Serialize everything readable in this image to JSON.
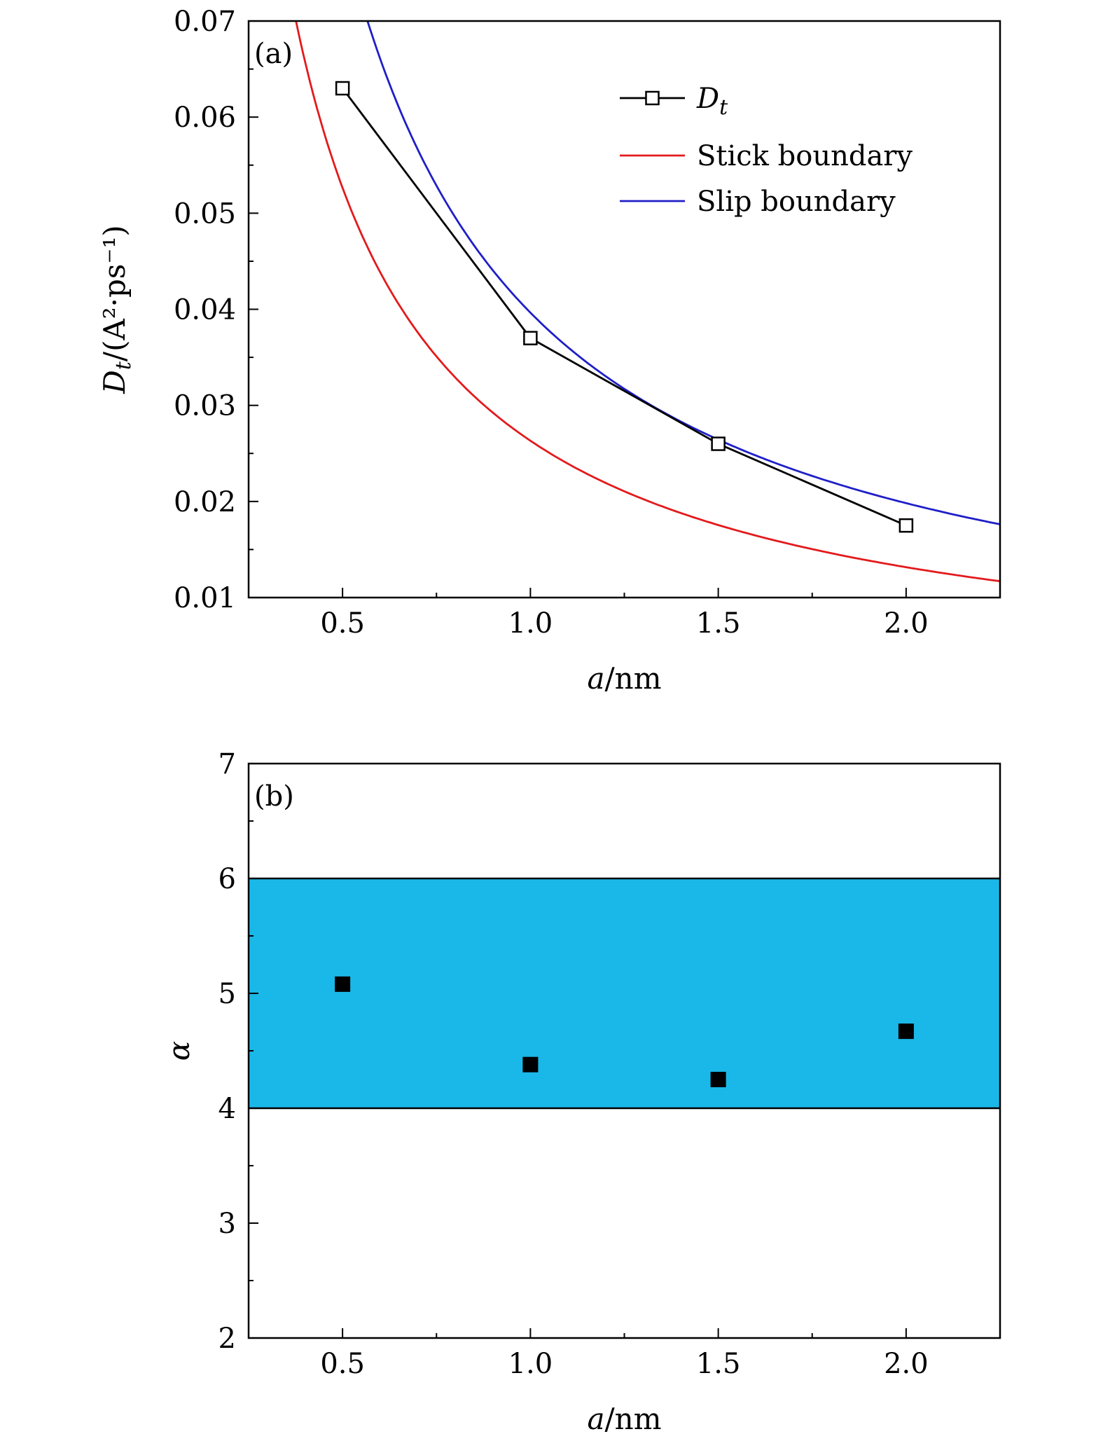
{
  "chart_data": [
    {
      "panel": "(a)",
      "type": "line",
      "xlabel_var": "a",
      "xlabel_unit": "/nm",
      "ylabel_var": "D",
      "ylabel_sub": "t",
      "ylabel_unit": "/(A²·ps⁻¹)",
      "xlim": [
        0.25,
        2.25
      ],
      "ylim": [
        0.01,
        0.07
      ],
      "xticks": [
        {
          "v": 0.5,
          "label": "0.5"
        },
        {
          "v": 1.0,
          "label": "1.0"
        },
        {
          "v": 1.5,
          "label": "1.5"
        },
        {
          "v": 2.0,
          "label": "2.0"
        }
      ],
      "yticks": [
        {
          "v": 0.01,
          "label": "0.01"
        },
        {
          "v": 0.02,
          "label": "0.02"
        },
        {
          "v": 0.03,
          "label": "0.03"
        },
        {
          "v": 0.04,
          "label": "0.04"
        },
        {
          "v": 0.05,
          "label": "0.05"
        },
        {
          "v": 0.06,
          "label": "0.06"
        },
        {
          "v": 0.07,
          "label": "0.07"
        }
      ],
      "legend_position": "top-right",
      "series": [
        {
          "name": "D_t",
          "legend_main": "D",
          "legend_sub": "t",
          "color": "#000000",
          "marker": "open-square",
          "x": [
            0.5,
            1.0,
            1.5,
            2.0
          ],
          "y": [
            0.063,
            0.037,
            0.026,
            0.0175
          ]
        },
        {
          "name": "Stick boundary",
          "color": "#e31a1c",
          "marker": "none",
          "curve_coefficient": 0.02632,
          "x_start": 0.375,
          "x_end": 2.25
        },
        {
          "name": "Slip boundary",
          "color": "#1f1fc8",
          "marker": "none",
          "curve_coefficient": 0.03965,
          "x_start": 0.566,
          "x_end": 2.25
        }
      ]
    },
    {
      "panel": "(b)",
      "type": "scatter",
      "xlabel_var": "a",
      "xlabel_unit": "/nm",
      "ylabel": "α",
      "xlim": [
        0.25,
        2.25
      ],
      "ylim": [
        2,
        7
      ],
      "xticks": [
        {
          "v": 0.5,
          "label": "0.5"
        },
        {
          "v": 1.0,
          "label": "1.0"
        },
        {
          "v": 1.5,
          "label": "1.5"
        },
        {
          "v": 2.0,
          "label": "2.0"
        }
      ],
      "yticks": [
        {
          "v": 2,
          "label": "2"
        },
        {
          "v": 3,
          "label": "3"
        },
        {
          "v": 4,
          "label": "4"
        },
        {
          "v": 5,
          "label": "5"
        },
        {
          "v": 6,
          "label": "6"
        },
        {
          "v": 7,
          "label": "7"
        }
      ],
      "band": {
        "y_min": 4,
        "y_max": 6,
        "color": "#1ab8e8"
      },
      "series": [
        {
          "marker": "filled-square",
          "color": "#000000",
          "x": [
            0.5,
            1.0,
            1.5,
            2.0
          ],
          "y": [
            5.08,
            4.38,
            4.25,
            4.67
          ]
        }
      ]
    }
  ]
}
